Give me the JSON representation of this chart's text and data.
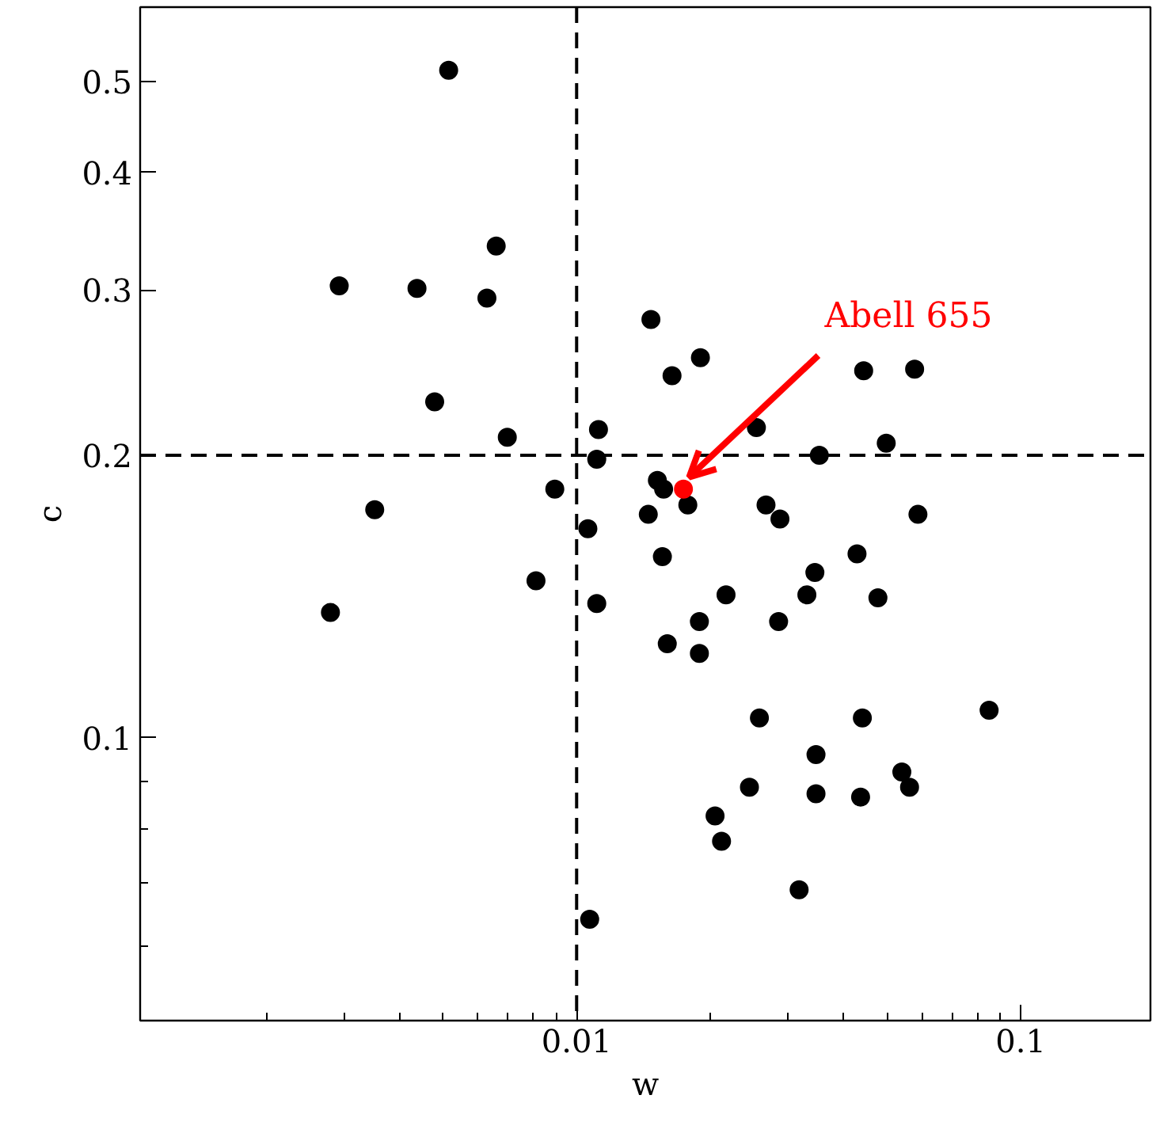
{
  "chart_data": {
    "type": "scatter",
    "xlabel": "w",
    "ylabel": "c",
    "log": "xy",
    "grid": false,
    "marker": "circle",
    "xlim": [
      0.00104,
      0.196
    ],
    "ylim": [
      0.05,
      0.6
    ],
    "xticks": [
      {
        "value": 0.002,
        "label": null
      },
      {
        "value": 0.003,
        "label": null
      },
      {
        "value": 0.004,
        "label": null
      },
      {
        "value": 0.005,
        "label": null
      },
      {
        "value": 0.006,
        "label": null
      },
      {
        "value": 0.007,
        "label": null
      },
      {
        "value": 0.008,
        "label": null
      },
      {
        "value": 0.009,
        "label": null
      },
      0.01,
      {
        "value": 0.02,
        "label": null
      },
      {
        "value": 0.03,
        "label": null
      },
      {
        "value": 0.04,
        "label": null
      },
      {
        "value": 0.05,
        "label": null
      },
      {
        "value": 0.06,
        "label": null
      },
      {
        "value": 0.07,
        "label": null
      },
      {
        "value": 0.08,
        "label": null
      },
      {
        "value": 0.09,
        "label": null
      },
      0.1
    ],
    "yticks": [
      {
        "value": 0.06,
        "label": null
      },
      {
        "value": 0.07,
        "label": null
      },
      {
        "value": 0.08,
        "label": null
      },
      {
        "value": 0.09,
        "label": null
      },
      0.1,
      0.2,
      0.3,
      0.4,
      0.5
    ],
    "ref_lines": [
      {
        "axis": "x",
        "value": 0.01,
        "line_style": "dashed",
        "color": "#000000"
      },
      {
        "axis": "y",
        "value": 0.2,
        "line_style": "dashed",
        "color": "#000000"
      }
    ],
    "series": [
      {
        "color": "#000000",
        "x": [
          0.00515,
          0.00292,
          0.00437,
          0.00628,
          0.00659,
          0.00479,
          0.00698,
          0.00351,
          0.00279,
          0.0081,
          0.00893,
          0.0106,
          0.0112,
          0.0111,
          0.0111,
          0.0107,
          0.0147,
          0.019,
          0.0164,
          0.0145,
          0.0152,
          0.0157,
          0.0156,
          0.0178,
          0.016,
          0.0189,
          0.0189,
          0.0217,
          0.0254,
          0.0267,
          0.0287,
          0.0285,
          0.0258,
          0.0245,
          0.0205,
          0.0212,
          0.0317,
          0.0352,
          0.0344,
          0.033,
          0.0346,
          0.0346,
          0.0443,
          0.0428,
          0.0477,
          0.044,
          0.0436,
          0.0498,
          0.0577,
          0.0587,
          0.054,
          0.0562,
          0.0849
        ],
        "values": [
          0.514,
          0.303,
          0.301,
          0.294,
          0.334,
          0.228,
          0.209,
          0.175,
          0.136,
          0.147,
          0.184,
          0.167,
          0.213,
          0.198,
          0.139,
          0.0641,
          0.279,
          0.254,
          0.243,
          0.173,
          0.188,
          0.184,
          0.156,
          0.177,
          0.126,
          0.133,
          0.123,
          0.142,
          0.214,
          0.177,
          0.171,
          0.133,
          0.105,
          0.0886,
          0.0826,
          0.0776,
          0.0689,
          0.2,
          0.15,
          0.142,
          0.096,
          0.0872,
          0.246,
          0.157,
          0.141,
          0.105,
          0.0865,
          0.206,
          0.247,
          0.173,
          0.092,
          0.0886,
          0.107
        ]
      },
      {
        "color": "#ff0000",
        "x": [
          0.0174
        ],
        "values": [
          0.184
        ]
      }
    ],
    "annotations": [
      {
        "text": "Abell 655",
        "x": 0.0174,
        "y": 0.184
      }
    ]
  }
}
